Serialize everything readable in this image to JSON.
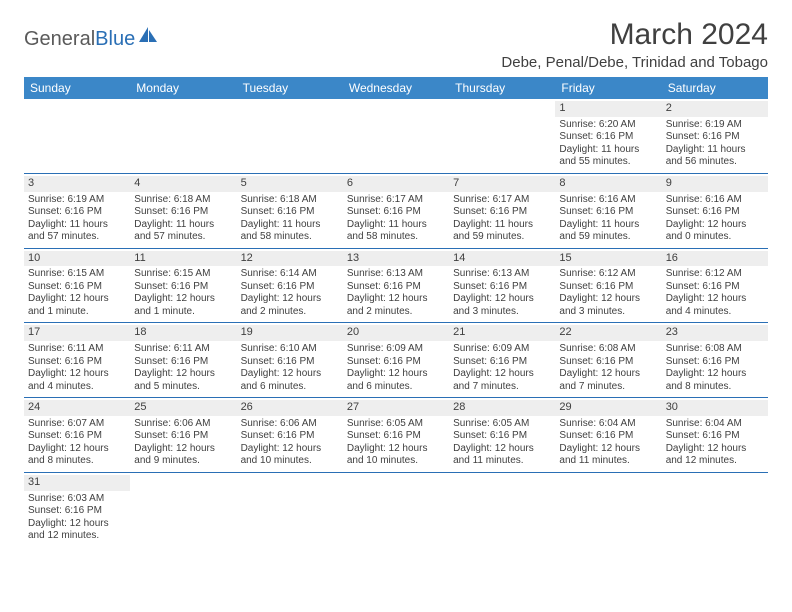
{
  "brand": {
    "part1": "General",
    "part2": "Blue"
  },
  "title": "March 2024",
  "location": "Debe, Penal/Debe, Trinidad and Tobago",
  "colors": {
    "header_bg": "#3b87c8",
    "header_text": "#ffffff",
    "row_divider": "#2a6fb5",
    "daynum_bg": "#eeeeee",
    "text": "#404040",
    "brand_gray": "#5a5a5a",
    "brand_blue": "#2a6fb5",
    "page_bg": "#ffffff"
  },
  "typography": {
    "title_fontsize": 30,
    "location_fontsize": 15,
    "dayheader_fontsize": 12,
    "cell_fontsize": 10
  },
  "day_names": [
    "Sunday",
    "Monday",
    "Tuesday",
    "Wednesday",
    "Thursday",
    "Friday",
    "Saturday"
  ],
  "weeks": [
    [
      {
        "empty": true
      },
      {
        "empty": true
      },
      {
        "empty": true
      },
      {
        "empty": true
      },
      {
        "empty": true
      },
      {
        "num": "1",
        "sunrise": "Sunrise: 6:20 AM",
        "sunset": "Sunset: 6:16 PM",
        "daylight": "Daylight: 11 hours and 55 minutes."
      },
      {
        "num": "2",
        "sunrise": "Sunrise: 6:19 AM",
        "sunset": "Sunset: 6:16 PM",
        "daylight": "Daylight: 11 hours and 56 minutes."
      }
    ],
    [
      {
        "num": "3",
        "sunrise": "Sunrise: 6:19 AM",
        "sunset": "Sunset: 6:16 PM",
        "daylight": "Daylight: 11 hours and 57 minutes."
      },
      {
        "num": "4",
        "sunrise": "Sunrise: 6:18 AM",
        "sunset": "Sunset: 6:16 PM",
        "daylight": "Daylight: 11 hours and 57 minutes."
      },
      {
        "num": "5",
        "sunrise": "Sunrise: 6:18 AM",
        "sunset": "Sunset: 6:16 PM",
        "daylight": "Daylight: 11 hours and 58 minutes."
      },
      {
        "num": "6",
        "sunrise": "Sunrise: 6:17 AM",
        "sunset": "Sunset: 6:16 PM",
        "daylight": "Daylight: 11 hours and 58 minutes."
      },
      {
        "num": "7",
        "sunrise": "Sunrise: 6:17 AM",
        "sunset": "Sunset: 6:16 PM",
        "daylight": "Daylight: 11 hours and 59 minutes."
      },
      {
        "num": "8",
        "sunrise": "Sunrise: 6:16 AM",
        "sunset": "Sunset: 6:16 PM",
        "daylight": "Daylight: 11 hours and 59 minutes."
      },
      {
        "num": "9",
        "sunrise": "Sunrise: 6:16 AM",
        "sunset": "Sunset: 6:16 PM",
        "daylight": "Daylight: 12 hours and 0 minutes."
      }
    ],
    [
      {
        "num": "10",
        "sunrise": "Sunrise: 6:15 AM",
        "sunset": "Sunset: 6:16 PM",
        "daylight": "Daylight: 12 hours and 1 minute."
      },
      {
        "num": "11",
        "sunrise": "Sunrise: 6:15 AM",
        "sunset": "Sunset: 6:16 PM",
        "daylight": "Daylight: 12 hours and 1 minute."
      },
      {
        "num": "12",
        "sunrise": "Sunrise: 6:14 AM",
        "sunset": "Sunset: 6:16 PM",
        "daylight": "Daylight: 12 hours and 2 minutes."
      },
      {
        "num": "13",
        "sunrise": "Sunrise: 6:13 AM",
        "sunset": "Sunset: 6:16 PM",
        "daylight": "Daylight: 12 hours and 2 minutes."
      },
      {
        "num": "14",
        "sunrise": "Sunrise: 6:13 AM",
        "sunset": "Sunset: 6:16 PM",
        "daylight": "Daylight: 12 hours and 3 minutes."
      },
      {
        "num": "15",
        "sunrise": "Sunrise: 6:12 AM",
        "sunset": "Sunset: 6:16 PM",
        "daylight": "Daylight: 12 hours and 3 minutes."
      },
      {
        "num": "16",
        "sunrise": "Sunrise: 6:12 AM",
        "sunset": "Sunset: 6:16 PM",
        "daylight": "Daylight: 12 hours and 4 minutes."
      }
    ],
    [
      {
        "num": "17",
        "sunrise": "Sunrise: 6:11 AM",
        "sunset": "Sunset: 6:16 PM",
        "daylight": "Daylight: 12 hours and 4 minutes."
      },
      {
        "num": "18",
        "sunrise": "Sunrise: 6:11 AM",
        "sunset": "Sunset: 6:16 PM",
        "daylight": "Daylight: 12 hours and 5 minutes."
      },
      {
        "num": "19",
        "sunrise": "Sunrise: 6:10 AM",
        "sunset": "Sunset: 6:16 PM",
        "daylight": "Daylight: 12 hours and 6 minutes."
      },
      {
        "num": "20",
        "sunrise": "Sunrise: 6:09 AM",
        "sunset": "Sunset: 6:16 PM",
        "daylight": "Daylight: 12 hours and 6 minutes."
      },
      {
        "num": "21",
        "sunrise": "Sunrise: 6:09 AM",
        "sunset": "Sunset: 6:16 PM",
        "daylight": "Daylight: 12 hours and 7 minutes."
      },
      {
        "num": "22",
        "sunrise": "Sunrise: 6:08 AM",
        "sunset": "Sunset: 6:16 PM",
        "daylight": "Daylight: 12 hours and 7 minutes."
      },
      {
        "num": "23",
        "sunrise": "Sunrise: 6:08 AM",
        "sunset": "Sunset: 6:16 PM",
        "daylight": "Daylight: 12 hours and 8 minutes."
      }
    ],
    [
      {
        "num": "24",
        "sunrise": "Sunrise: 6:07 AM",
        "sunset": "Sunset: 6:16 PM",
        "daylight": "Daylight: 12 hours and 8 minutes."
      },
      {
        "num": "25",
        "sunrise": "Sunrise: 6:06 AM",
        "sunset": "Sunset: 6:16 PM",
        "daylight": "Daylight: 12 hours and 9 minutes."
      },
      {
        "num": "26",
        "sunrise": "Sunrise: 6:06 AM",
        "sunset": "Sunset: 6:16 PM",
        "daylight": "Daylight: 12 hours and 10 minutes."
      },
      {
        "num": "27",
        "sunrise": "Sunrise: 6:05 AM",
        "sunset": "Sunset: 6:16 PM",
        "daylight": "Daylight: 12 hours and 10 minutes."
      },
      {
        "num": "28",
        "sunrise": "Sunrise: 6:05 AM",
        "sunset": "Sunset: 6:16 PM",
        "daylight": "Daylight: 12 hours and 11 minutes."
      },
      {
        "num": "29",
        "sunrise": "Sunrise: 6:04 AM",
        "sunset": "Sunset: 6:16 PM",
        "daylight": "Daylight: 12 hours and 11 minutes."
      },
      {
        "num": "30",
        "sunrise": "Sunrise: 6:04 AM",
        "sunset": "Sunset: 6:16 PM",
        "daylight": "Daylight: 12 hours and 12 minutes."
      }
    ],
    [
      {
        "num": "31",
        "sunrise": "Sunrise: 6:03 AM",
        "sunset": "Sunset: 6:16 PM",
        "daylight": "Daylight: 12 hours and 12 minutes."
      },
      {
        "empty": true
      },
      {
        "empty": true
      },
      {
        "empty": true
      },
      {
        "empty": true
      },
      {
        "empty": true
      },
      {
        "empty": true
      }
    ]
  ]
}
